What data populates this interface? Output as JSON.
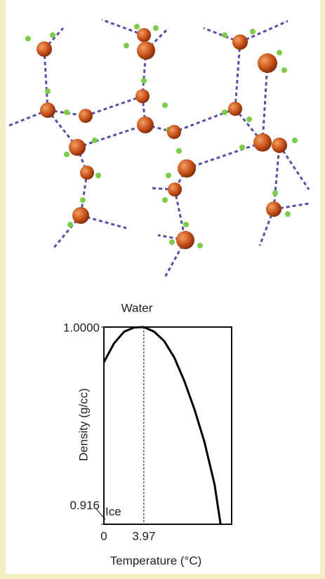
{
  "chart_data": {
    "type": "line",
    "title": "Water",
    "x_label": "Temperature (°C)",
    "y_label": "Density (g/cc)",
    "xlim": [
      0,
      12.7
    ],
    "xticks": [
      0,
      3.97
    ],
    "ylim": [
      0.916,
      1.0
    ],
    "yticks": [
      {
        "value": 1.0,
        "label": "1.0000"
      },
      0.916
    ],
    "annotation": "Ice",
    "series": [
      {
        "color": "#000000",
        "x": [
          0,
          1,
          2,
          3,
          3.97,
          5,
          6,
          7,
          8,
          9,
          10,
          11,
          11.6
        ],
        "values": [
          0.985,
          0.993,
          0.998,
          0.9998,
          1.0,
          0.998,
          0.994,
          0.987,
          0.977,
          0.965,
          0.951,
          0.933,
          0.916
        ]
      }
    ]
  }
}
